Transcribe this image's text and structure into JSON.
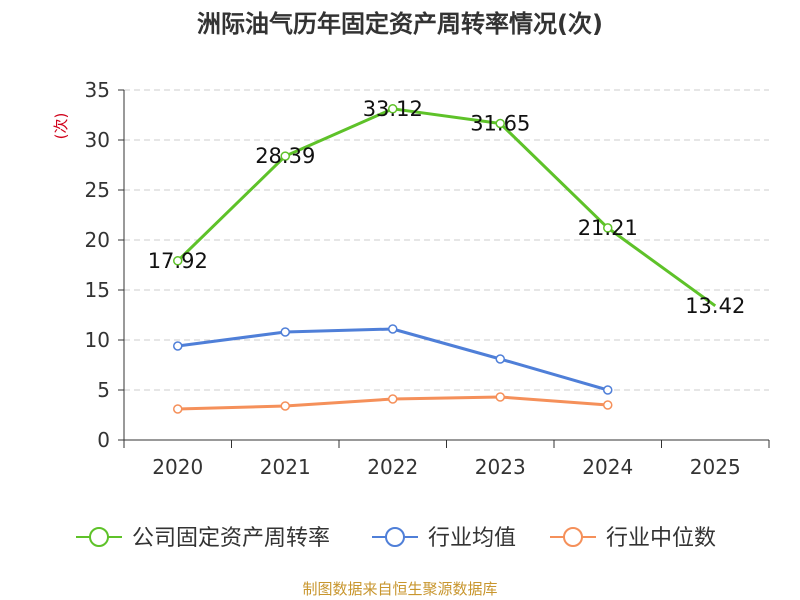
{
  "chart_data": {
    "type": "line",
    "title": "洲际油气历年固定资产周转率情况(次)",
    "ylabel": "(次)",
    "xlabel": "",
    "categories": [
      "2020",
      "2021",
      "2022",
      "2023",
      "2024",
      "2025"
    ],
    "ylim": [
      0,
      35
    ],
    "yticks": [
      0,
      5,
      10,
      15,
      20,
      25,
      30,
      35
    ],
    "grid": true,
    "legend_position": "bottom",
    "series": [
      {
        "name": "公司固定资产周转率",
        "color": "#5ec229",
        "values": [
          17.92,
          28.39,
          33.12,
          31.65,
          21.21,
          13.42
        ],
        "labels": [
          "17.92",
          "28.39",
          "33.12",
          "31.65",
          "21.21",
          "13.42"
        ],
        "show_labels": true,
        "marker_last": false
      },
      {
        "name": "行业均值",
        "color": "#4f7fd8",
        "values": [
          9.4,
          10.8,
          11.1,
          8.1,
          5.0,
          null
        ],
        "show_labels": false,
        "marker_last": true
      },
      {
        "name": "行业中位数",
        "color": "#f5905a",
        "values": [
          3.1,
          3.4,
          4.1,
          4.3,
          3.5,
          null
        ],
        "show_labels": false,
        "marker_last": true
      }
    ]
  },
  "source_note": "制图数据来自恒生聚源数据库"
}
